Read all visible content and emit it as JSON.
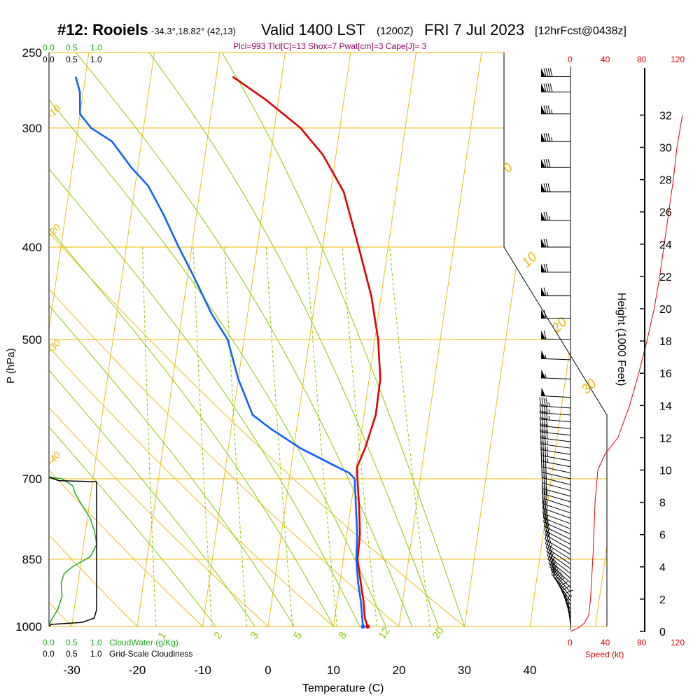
{
  "header": {
    "station": "#12: Rooiels",
    "coords": "-34.3°,18.82° (42,13)",
    "valid": "Valid 1400 LST",
    "utc": "(1200Z)",
    "date": "FRI 7 Jul 2023",
    "fcst": "[12hrFcst@0438z]"
  },
  "params_line": "Plcl=993 Tlcl[C]=13 Shox=7 Pwat[cm]=3 Cape[J]= 3",
  "colors": {
    "isobar": "#f0b400",
    "dry_adiabat": "#f0b400",
    "moist_adiabat": "#88cc00",
    "mixing_ratio": "#88cc00",
    "temperature": "#e00000",
    "dewpoint": "#1060ff",
    "cloud": "#22aa22",
    "speed": "#dd0000",
    "params": "#990066"
  },
  "cloud_scale": {
    "water_ticks": [
      "0.0",
      "0.5",
      "1.0"
    ],
    "cover_ticks": [
      "0.0",
      "0.5",
      "1.0"
    ],
    "water_label": "CloudWater (g/Kg)",
    "cover_label": "Grid-Scale Cloudiness"
  },
  "speed_scale": {
    "ticks": [
      "0",
      "40",
      "80",
      "120"
    ],
    "label": "Speed (kt)"
  },
  "height_axis": {
    "label": "Height (1000 Feet)",
    "ticks": [
      "0",
      "2",
      "4",
      "6",
      "8",
      "10",
      "12",
      "14",
      "16",
      "18",
      "20",
      "22",
      "24",
      "26",
      "28",
      "30",
      "32"
    ]
  },
  "chart_data": {
    "type": "line",
    "title": "#12: Rooiels Valid 1400 LST (1200Z) FRI 7 Jul 2023 [12hrFcst@0438z]",
    "xlabel": "Temperature (C)",
    "ylabel": "P (hPa)",
    "x_ticks": [
      "-30",
      "-20",
      "-10",
      "0",
      "10",
      "20",
      "30",
      "40"
    ],
    "y_ticks": [
      "250",
      "300",
      "400",
      "500",
      "700",
      "850",
      "1000"
    ],
    "xlim": [
      -34,
      36
    ],
    "pressure_range": [
      1000,
      250
    ],
    "dry_adiabat_labels": [
      "30",
      "20",
      "10",
      "0",
      "-10",
      "-20",
      "-30",
      "-40"
    ],
    "dry_adiabat_values": [
      30,
      20,
      10,
      0,
      -10,
      -20,
      -30,
      -40
    ],
    "mixing_ratio_labels": [
      "1",
      "2",
      "3",
      "5",
      "8",
      "12",
      "20"
    ],
    "mixing_ratio_values": [
      1,
      2,
      3,
      5,
      8,
      12,
      20
    ],
    "moist_adiabat_values": [
      -8,
      -2,
      4,
      10,
      14,
      18,
      22,
      26,
      30
    ],
    "series": [
      {
        "name": "Temperature",
        "points": [
          [
            15.2,
            1000
          ],
          [
            14.6,
            980
          ],
          [
            14.0,
            940
          ],
          [
            13.2,
            900
          ],
          [
            12.2,
            850
          ],
          [
            12.0,
            800
          ],
          [
            11.3,
            750
          ],
          [
            10.4,
            700
          ],
          [
            10.1,
            680
          ],
          [
            10.9,
            650
          ],
          [
            11.8,
            600
          ],
          [
            11.7,
            550
          ],
          [
            10.5,
            500
          ],
          [
            8.5,
            450
          ],
          [
            5.5,
            400
          ],
          [
            2.0,
            350
          ],
          [
            -2.0,
            320
          ],
          [
            -6.0,
            300
          ],
          [
            -12.0,
            280
          ],
          [
            -17.5,
            265
          ]
        ]
      },
      {
        "name": "Dewpoint",
        "points": [
          [
            14.5,
            1000
          ],
          [
            14.2,
            980
          ],
          [
            13.6,
            940
          ],
          [
            12.8,
            900
          ],
          [
            12.0,
            850
          ],
          [
            11.6,
            800
          ],
          [
            10.8,
            750
          ],
          [
            10.0,
            700
          ],
          [
            9.0,
            690
          ],
          [
            7.0,
            680
          ],
          [
            1.0,
            650
          ],
          [
            -4.0,
            620
          ],
          [
            -7.0,
            600
          ],
          [
            -10.0,
            550
          ],
          [
            -12.5,
            500
          ],
          [
            -15.5,
            470
          ],
          [
            -19.0,
            430
          ],
          [
            -22.0,
            400
          ],
          [
            -25.0,
            370
          ],
          [
            -28.0,
            345
          ],
          [
            -31.0,
            330
          ],
          [
            -34.5,
            310
          ],
          [
            -38.0,
            300
          ],
          [
            -40.0,
            290
          ],
          [
            -40.5,
            275
          ],
          [
            -41.5,
            265
          ]
        ]
      }
    ],
    "cloud_water_profile": {
      "pressures": [
        1000,
        985,
        960,
        930,
        900,
        880,
        865,
        845,
        820,
        795,
        770,
        745,
        725,
        712,
        700,
        697
      ],
      "values": [
        0.0,
        0.05,
        0.2,
        0.3,
        0.28,
        0.35,
        0.55,
        0.95,
        1.1,
        1.05,
        0.95,
        0.75,
        0.6,
        0.55,
        0.3,
        0.0
      ]
    },
    "cloudiness_profile": {
      "pressures": [
        1000,
        995,
        990,
        980,
        960,
        940,
        920,
        880,
        800,
        705,
        703,
        697
      ],
      "values": [
        0.0,
        0.05,
        0.7,
        0.95,
        1.0,
        1.0,
        1.0,
        1.0,
        1.0,
        1.0,
        0.2,
        0.0
      ]
    },
    "speed_profile": {
      "heights_kft": [
        0,
        0.2,
        0.5,
        1,
        2,
        3,
        5,
        8,
        10,
        11,
        12,
        14,
        16,
        18,
        20,
        22,
        24,
        26,
        28,
        30,
        31,
        32
      ],
      "values_kt": [
        0,
        8,
        15,
        20,
        22,
        23,
        25,
        27,
        30,
        38,
        52,
        65,
        75,
        84,
        92,
        98,
        103,
        108,
        113,
        117,
        120,
        123
      ]
    },
    "wind_barbs": {
      "pressures": [
        1000,
        990,
        980,
        970,
        960,
        950,
        940,
        930,
        920,
        910,
        900,
        890,
        880,
        870,
        860,
        850,
        840,
        830,
        820,
        810,
        800,
        790,
        780,
        770,
        760,
        750,
        740,
        730,
        720,
        710,
        700,
        690,
        680,
        670,
        660,
        650,
        640,
        630,
        620,
        610,
        600,
        590,
        575,
        550,
        525,
        500,
        475,
        450,
        425,
        400,
        375,
        350,
        330,
        310,
        290,
        275,
        265
      ],
      "direction_deg": [
        355,
        350,
        345,
        340,
        335,
        330,
        325,
        320,
        318,
        315,
        312,
        310,
        308,
        306,
        304,
        302,
        300,
        300,
        298,
        296,
        294,
        292,
        290,
        290,
        288,
        288,
        286,
        285,
        285,
        284,
        283,
        282,
        281,
        280,
        279,
        278,
        277,
        276,
        275,
        275,
        274,
        274,
        273,
        272,
        272,
        271,
        270,
        270,
        270,
        270,
        270,
        270,
        270,
        270,
        270,
        270,
        270
      ],
      "speed_kt": [
        5,
        10,
        10,
        15,
        15,
        20,
        20,
        20,
        25,
        25,
        25,
        25,
        25,
        25,
        25,
        25,
        25,
        25,
        25,
        25,
        25,
        25,
        25,
        25,
        25,
        30,
        30,
        30,
        30,
        30,
        30,
        30,
        35,
        35,
        35,
        35,
        40,
        40,
        40,
        45,
        45,
        45,
        50,
        55,
        55,
        60,
        60,
        65,
        70,
        70,
        75,
        80,
        80,
        85,
        85,
        90,
        90
      ]
    }
  }
}
